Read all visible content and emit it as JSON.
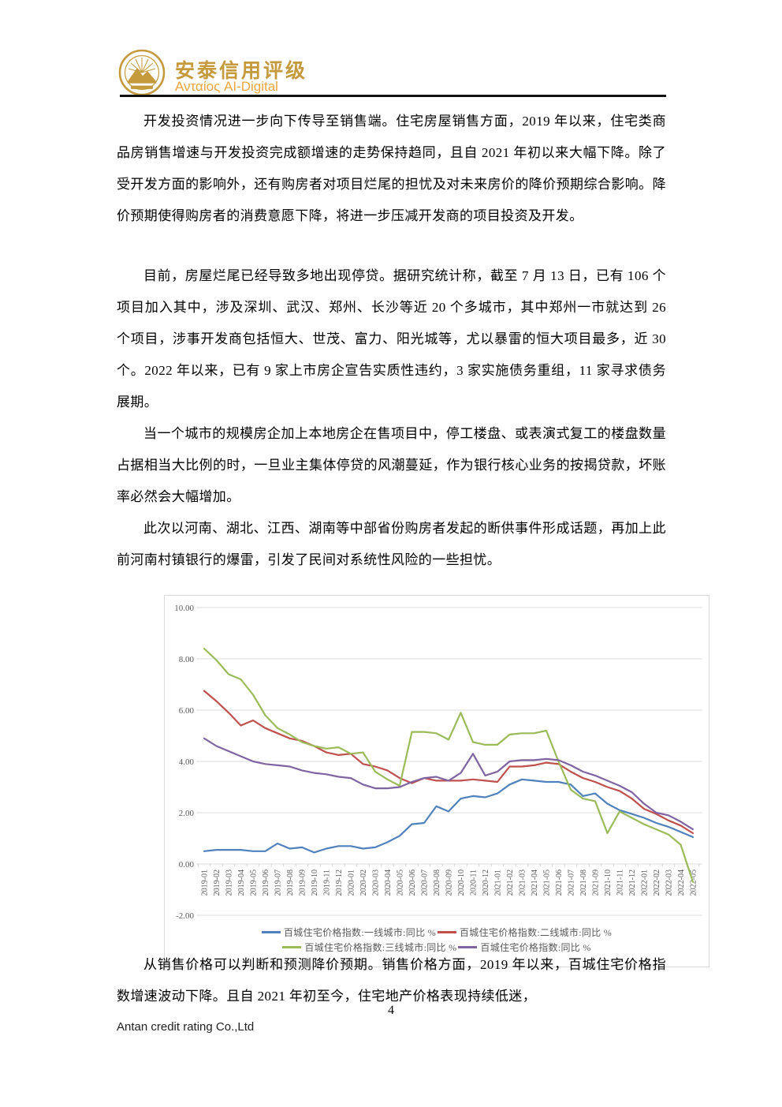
{
  "header": {
    "company_name": "安泰信用评级",
    "company_subtitle": "Ανταίος AI-Digital",
    "brand_color": "#c49a3c"
  },
  "body": {
    "paragraphs": [
      {
        "text": "开发投资情况进一步向下传导至销售端。住宅房屋销售方面，2019 年以来，住宅类商品房销售增速与开发投资完成额增速的走势保持趋同，且自 2021 年初以来大幅下降。除了受开发方面的影响外，还有购房者对项目烂尾的担忧及对未来房价的降价预期综合影响。降价预期使得购房者的消费意愿下降，将进一步压减开发商的项目投资及开发。"
      },
      {
        "text": "目前，房屋烂尾已经导致多地出现停贷。据研究统计称，截至 7 月 13 日，已有 106 个项目加入其中，涉及深圳、武汉、郑州、长沙等近 20 个多城市，其中郑州一市就达到 26 个项目，涉事开发商包括恒大、世茂、富力、阳光城等，尤以暴雷的恒大项目最多，近 30 个。2022 年以来，已有 9 家上市房企宣告实质性违约，3 家实施债务重组，11 家寻求债务展期。"
      },
      {
        "text": "当一个城市的规模房企加上本地房企在售项目中，停工楼盘、或表演式复工的楼盘数量占据相当大比例的时，一旦业主集体停贷的风潮蔓延，作为银行核心业务的按揭贷款，坏账率必然会大幅增加。"
      },
      {
        "text": "此次以河南、湖北、江西、湖南等中部省份购房者发起的断供事件形成话题，再加上此前河南村镇银行的爆雷，引发了民间对系统性风险的一些担忧。"
      },
      {
        "text": "从销售价格可以判断和预测降价预期。销售价格方面，2019 年以来，百城住宅价格指数增速波动下降。且自 2021 年初至今，住宅地产价格表现持续低迷，"
      }
    ]
  },
  "chart_data": {
    "type": "line",
    "title": "",
    "xlabel": "",
    "ylabel": "",
    "ylim": [
      -2,
      10
    ],
    "ytick_step": 2,
    "grid": true,
    "legend_position": "bottom",
    "x": [
      "2019-01",
      "2019-02",
      "2019-03",
      "2019-04",
      "2019-05",
      "2019-06",
      "2019-07",
      "2019-08",
      "2019-09",
      "2019-10",
      "2019-11",
      "2019-12",
      "2020-01",
      "2020-02",
      "2020-03",
      "2020-04",
      "2020-05",
      "2020-06",
      "2020-07",
      "2020-08",
      "2020-09",
      "2020-10",
      "2020-11",
      "2020-12",
      "2021-01",
      "2021-02",
      "2021-03",
      "2021-04",
      "2021-05",
      "2021-06",
      "2021-07",
      "2021-08",
      "2021-09",
      "2021-10",
      "2021-11",
      "2021-12",
      "2022-01",
      "2022-02",
      "2022-03",
      "2022-04",
      "2022-05"
    ],
    "series": [
      {
        "name": "百城住宅价格指数:一线城市:同比 %",
        "color": "#4F81BD",
        "values": [
          0.5,
          0.55,
          0.55,
          0.55,
          0.5,
          0.5,
          0.8,
          0.6,
          0.65,
          0.45,
          0.6,
          0.7,
          0.7,
          0.6,
          0.65,
          0.85,
          1.1,
          1.55,
          1.6,
          2.25,
          2.05,
          2.55,
          2.65,
          2.6,
          2.75,
          3.1,
          3.3,
          3.25,
          3.2,
          3.2,
          3.1,
          2.65,
          2.75,
          2.35,
          2.1,
          1.95,
          1.8,
          1.6,
          1.45,
          1.25,
          1.05
        ]
      },
      {
        "name": "百城住宅价格指数:二线城市:同比 %",
        "color": "#C0504D",
        "values": [
          6.75,
          6.35,
          5.9,
          5.4,
          5.6,
          5.3,
          5.1,
          4.9,
          4.8,
          4.6,
          4.35,
          4.25,
          4.3,
          3.9,
          3.8,
          3.65,
          3.35,
          3.15,
          3.35,
          3.25,
          3.25,
          3.25,
          3.3,
          3.25,
          3.2,
          3.8,
          3.8,
          3.85,
          3.95,
          3.9,
          3.6,
          3.35,
          3.2,
          3.0,
          2.85,
          2.55,
          2.15,
          1.95,
          1.7,
          1.5,
          1.2
        ]
      },
      {
        "name": "百城住宅价格指数:三线城市:同比 %",
        "color": "#9BBB59",
        "values": [
          8.4,
          7.95,
          7.4,
          7.2,
          6.6,
          5.8,
          5.3,
          5.05,
          4.75,
          4.6,
          4.5,
          4.55,
          4.3,
          4.35,
          3.6,
          3.3,
          3.05,
          5.15,
          5.15,
          5.1,
          4.85,
          5.9,
          4.75,
          4.65,
          4.65,
          5.05,
          5.1,
          5.1,
          5.2,
          4.0,
          2.9,
          2.55,
          2.45,
          1.2,
          2.05,
          1.8,
          1.55,
          1.35,
          1.15,
          0.75,
          -0.7
        ]
      },
      {
        "name": "百城住宅价格指数:同比 %",
        "color": "#8064A2",
        "values": [
          4.9,
          4.6,
          4.4,
          4.2,
          4.0,
          3.9,
          3.85,
          3.8,
          3.65,
          3.55,
          3.5,
          3.4,
          3.35,
          3.1,
          2.95,
          2.95,
          3.0,
          3.2,
          3.35,
          3.4,
          3.25,
          3.55,
          4.3,
          3.45,
          3.6,
          4.0,
          4.05,
          4.05,
          4.1,
          4.05,
          3.85,
          3.6,
          3.45,
          3.25,
          3.05,
          2.8,
          2.35,
          2.0,
          1.9,
          1.65,
          1.35
        ]
      }
    ],
    "axis_text_color": "#595959",
    "gridline_color": "#dcdcdc"
  },
  "footer": {
    "page_number": "4",
    "company_name": "Antan credit rating Co.,Ltd"
  }
}
